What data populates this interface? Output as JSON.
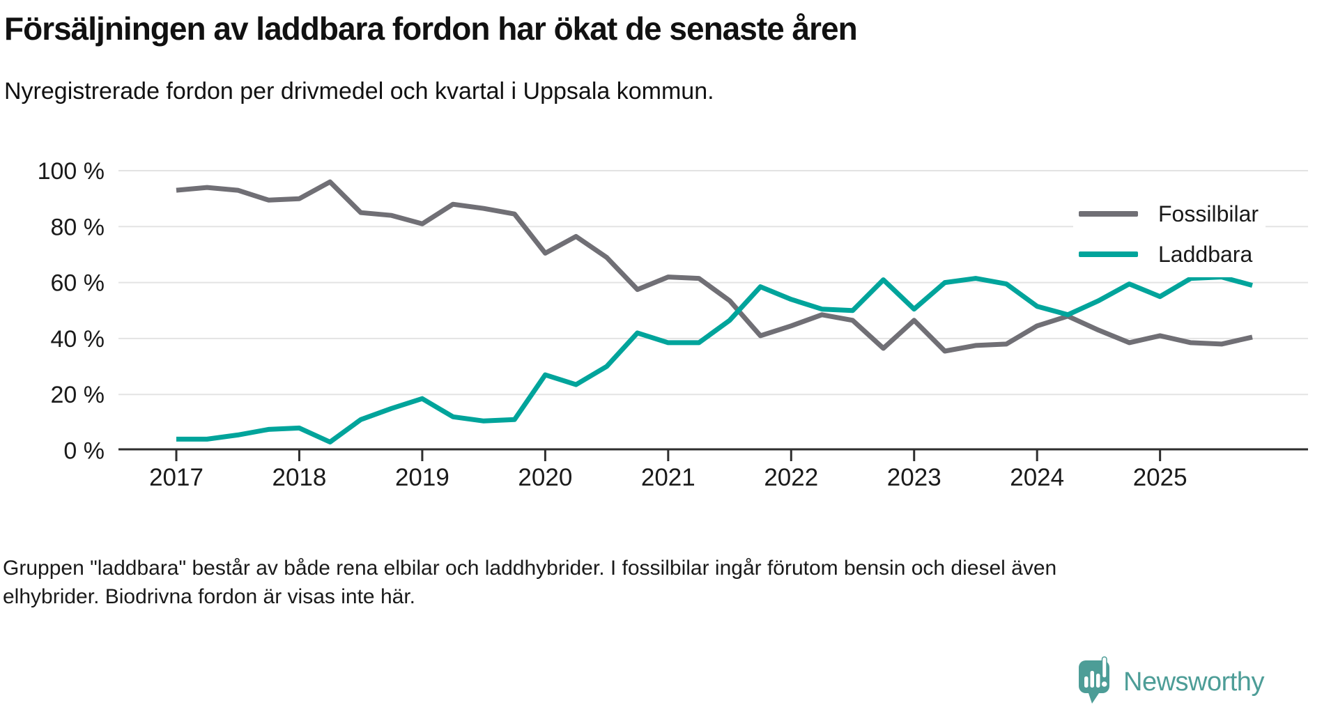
{
  "header": {
    "title": "Försäljningen av laddbara fordon har ökat de senaste åren",
    "subtitle": "Nyregistrerade fordon per drivmedel och kvartal i Uppsala kommun."
  },
  "chart_data": {
    "type": "line",
    "title": "Försäljningen av laddbara fordon har ökat de senaste åren",
    "subtitle": "Nyregistrerade fordon per drivmedel och kvartal i Uppsala kommun.",
    "x_unit": "kvartal",
    "x": [
      "2017 Q1",
      "2017 Q2",
      "2017 Q3",
      "2017 Q4",
      "2018 Q1",
      "2018 Q2",
      "2018 Q3",
      "2018 Q4",
      "2019 Q1",
      "2019 Q2",
      "2019 Q3",
      "2019 Q4",
      "2020 Q1",
      "2020 Q2",
      "2020 Q3",
      "2020 Q4",
      "2021 Q1",
      "2021 Q2",
      "2021 Q3",
      "2021 Q4",
      "2022 Q1",
      "2022 Q2",
      "2022 Q3",
      "2022 Q4",
      "2023 Q1",
      "2023 Q2",
      "2023 Q3",
      "2023 Q4",
      "2024 Q1",
      "2024 Q2",
      "2024 Q3",
      "2024 Q4",
      "2025 Q1",
      "2025 Q2",
      "2025 Q3",
      "2025 Q4"
    ],
    "series": [
      {
        "name": "Fossilbilar",
        "color": "#706f75",
        "values": [
          93,
          94,
          93,
          89.5,
          90,
          96,
          85,
          84,
          81,
          88,
          86.5,
          84.5,
          70.5,
          76.5,
          69,
          57.5,
          62,
          61.5,
          53.5,
          41,
          44.5,
          48.5,
          46.5,
          36.5,
          46.5,
          35.5,
          37.5,
          38,
          44.5,
          48,
          43,
          38.5,
          41,
          38.5,
          38,
          40.5
        ]
      },
      {
        "name": "Laddbara",
        "color": "#00a49b",
        "values": [
          4,
          4,
          5.5,
          7.5,
          8,
          3,
          11,
          15,
          18.5,
          12,
          10.5,
          11,
          27,
          23.5,
          30,
          42,
          38.5,
          38.5,
          46.5,
          58.5,
          54,
          50.5,
          50,
          61,
          50.5,
          60,
          61.5,
          59.5,
          51.5,
          48.5,
          53.5,
          59.5,
          55,
          61.5,
          62,
          59
        ]
      }
    ],
    "y_ticks": [
      {
        "label": "100 %",
        "value": 100
      },
      {
        "label": "80 %",
        "value": 80
      },
      {
        "label": "60 %",
        "value": 60
      },
      {
        "label": "40 %",
        "value": 40
      },
      {
        "label": "20 %",
        "value": 20
      },
      {
        "label": "0 %",
        "value": 0
      }
    ],
    "x_ticks": [
      "2017",
      "2018",
      "2019",
      "2020",
      "2021",
      "2022",
      "2023",
      "2024",
      "2025"
    ],
    "ylim": [
      0,
      100
    ],
    "grid": true,
    "legend_position": "top-right"
  },
  "footer": {
    "line1": "Gruppen \"laddbara\" består av både rena elbilar och laddhybrider. I fossilbilar ingår förutom bensin och diesel även",
    "line2": "elhybrider. Biodrivna fordon är visas inte här."
  },
  "logo": {
    "text": "Newsworthy",
    "color": "#4d9d97"
  }
}
